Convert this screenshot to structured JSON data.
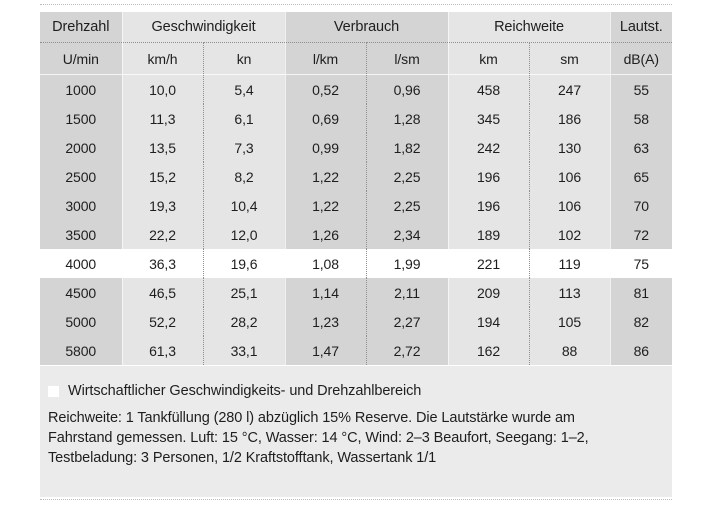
{
  "chart_data": {
    "type": "table",
    "groups": [
      {
        "label": "Drehzahl",
        "span": 1
      },
      {
        "label": "Geschwindigkeit",
        "span": 2
      },
      {
        "label": "Verbrauch",
        "span": 2
      },
      {
        "label": "Reichweite",
        "span": 2
      },
      {
        "label": "Lautst.",
        "span": 1
      }
    ],
    "units": [
      "U/min",
      "km/h",
      "kn",
      "l/km",
      "l/sm",
      "km",
      "sm",
      "dB(A)"
    ],
    "rows": [
      [
        "1000",
        "10,0",
        "5,4",
        "0,52",
        "0,96",
        "458",
        "247",
        "55"
      ],
      [
        "1500",
        "11,3",
        "6,1",
        "0,69",
        "1,28",
        "345",
        "186",
        "58"
      ],
      [
        "2000",
        "13,5",
        "7,3",
        "0,99",
        "1,82",
        "242",
        "130",
        "63"
      ],
      [
        "2500",
        "15,2",
        "8,2",
        "1,22",
        "2,25",
        "196",
        "106",
        "65"
      ],
      [
        "3000",
        "19,3",
        "10,4",
        "1,22",
        "2,25",
        "196",
        "106",
        "70"
      ],
      [
        "3500",
        "22,2",
        "12,0",
        "1,26",
        "2,34",
        "189",
        "102",
        "72"
      ],
      [
        "4000",
        "36,3",
        "19,6",
        "1,08",
        "1,99",
        "221",
        "119",
        "75"
      ],
      [
        "4500",
        "46,5",
        "25,1",
        "1,14",
        "2,11",
        "209",
        "113",
        "81"
      ],
      [
        "5000",
        "52,2",
        "28,2",
        "1,23",
        "2,27",
        "194",
        "105",
        "82"
      ],
      [
        "5800",
        "61,3",
        "33,1",
        "1,47",
        "2,72",
        "162",
        "88",
        "86"
      ]
    ],
    "highlighted_row_index": 6
  },
  "legend": {
    "marker": "white-square",
    "label": "Wirtschaftlicher Geschwindigkeits- und Drehzahlbereich"
  },
  "footnote_lines": [
    "Reichweite: 1 Tankfüllung (280 l) abzüglich 15% Reserve. Die Lautstärke wurde am",
    "Fahrstand gemessen. Luft: 15 °C, Wasser: 14 °C, Wind: 2–3 Beaufort, Seegang: 1–2,",
    "Testbeladung: 3 Personen, 1/2 Kraftstofftank, Wassertank 1/1"
  ],
  "colors": {
    "band_dark": "#d4d4d4",
    "band_light": "#e5e5e5",
    "footer_bg": "#ebebeb",
    "highlight_row": "#ffffff",
    "dotted_rule": "#8f8f8f",
    "dotted_rule_light": "#bcbcbc",
    "text": "#1e1e1e"
  }
}
